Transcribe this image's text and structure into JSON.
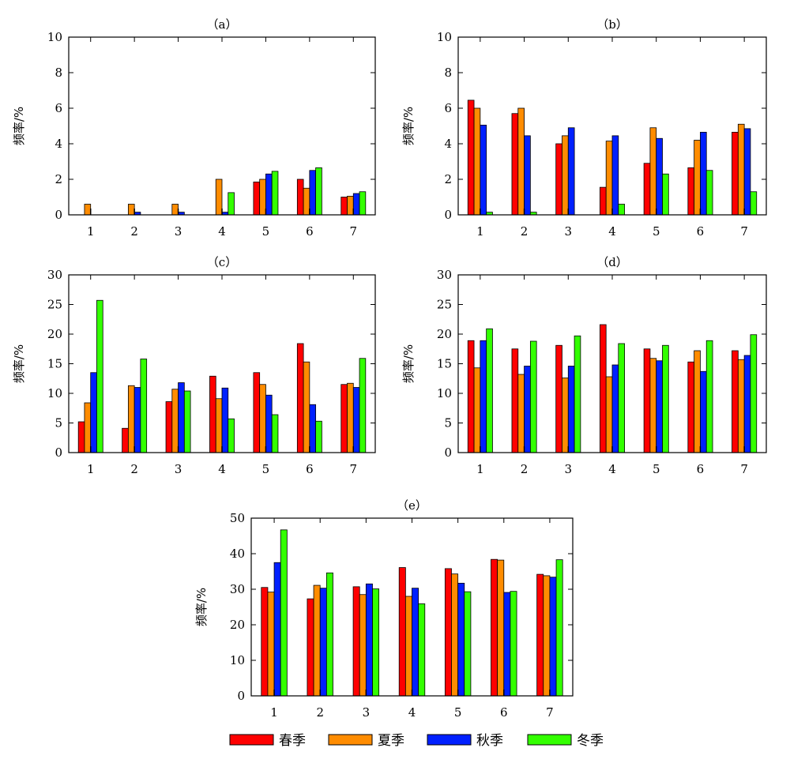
{
  "chart_data": [
    {
      "type": "bar",
      "title": "（a）",
      "ylabel": "频率/%",
      "xlabel": "",
      "categories": [
        "1",
        "2",
        "3",
        "4",
        "5",
        "6",
        "7"
      ],
      "ylim": [
        0,
        10
      ],
      "yticks": [
        0,
        2,
        4,
        6,
        8,
        10
      ],
      "series": [
        {
          "name": "春季",
          "values": [
            0,
            0,
            0,
            0,
            1.85,
            2.0,
            1.0
          ]
        },
        {
          "name": "夏季",
          "values": [
            0.6,
            0.6,
            0.6,
            2.0,
            2.0,
            1.5,
            1.05
          ]
        },
        {
          "name": "秋季",
          "values": [
            0,
            0.15,
            0.15,
            0.15,
            2.3,
            2.5,
            1.2
          ]
        },
        {
          "name": "冬季",
          "values": [
            0,
            0,
            0,
            1.25,
            2.45,
            2.65,
            1.3
          ]
        }
      ]
    },
    {
      "type": "bar",
      "title": "（b）",
      "ylabel": "频率/%",
      "xlabel": "",
      "categories": [
        "1",
        "2",
        "3",
        "4",
        "5",
        "6",
        "7"
      ],
      "ylim": [
        0,
        10
      ],
      "yticks": [
        0,
        2,
        4,
        6,
        8,
        10
      ],
      "series": [
        {
          "name": "春季",
          "values": [
            6.45,
            5.7,
            4.0,
            1.55,
            2.9,
            2.65,
            4.65
          ]
        },
        {
          "name": "夏季",
          "values": [
            6.0,
            6.0,
            4.45,
            4.15,
            4.9,
            4.2,
            5.1
          ]
        },
        {
          "name": "秋季",
          "values": [
            5.05,
            4.45,
            4.9,
            4.45,
            4.3,
            4.65,
            4.85
          ]
        },
        {
          "name": "冬季",
          "values": [
            0.15,
            0.15,
            0,
            0.6,
            2.3,
            2.5,
            1.3
          ]
        }
      ]
    },
    {
      "type": "bar",
      "title": "（c）",
      "ylabel": "频率/%",
      "xlabel": "",
      "categories": [
        "1",
        "2",
        "3",
        "4",
        "5",
        "6",
        "7"
      ],
      "ylim": [
        0,
        30
      ],
      "yticks": [
        0,
        5,
        10,
        15,
        20,
        25,
        30
      ],
      "series": [
        {
          "name": "春季",
          "values": [
            5.2,
            4.1,
            8.6,
            12.9,
            13.5,
            18.4,
            11.5
          ]
        },
        {
          "name": "夏季",
          "values": [
            8.4,
            11.3,
            10.7,
            9.1,
            11.5,
            15.3,
            11.7
          ]
        },
        {
          "name": "秋季",
          "values": [
            13.5,
            11.0,
            11.8,
            10.9,
            9.7,
            8.1,
            11.0
          ]
        },
        {
          "name": "冬季",
          "values": [
            25.7,
            15.8,
            10.4,
            5.7,
            6.4,
            5.3,
            15.9
          ]
        }
      ]
    },
    {
      "type": "bar",
      "title": "（d）",
      "ylabel": "频率/%",
      "xlabel": "",
      "categories": [
        "1",
        "2",
        "3",
        "4",
        "5",
        "6",
        "7"
      ],
      "ylim": [
        0,
        30
      ],
      "yticks": [
        0,
        5,
        10,
        15,
        20,
        25,
        30
      ],
      "series": [
        {
          "name": "春季",
          "values": [
            18.9,
            17.5,
            18.1,
            21.6,
            17.5,
            15.3,
            17.2
          ]
        },
        {
          "name": "夏季",
          "values": [
            14.3,
            13.2,
            12.6,
            12.8,
            15.9,
            17.2,
            15.7
          ]
        },
        {
          "name": "秋季",
          "values": [
            18.9,
            14.6,
            14.6,
            14.8,
            15.5,
            13.7,
            16.4
          ]
        },
        {
          "name": "冬季",
          "values": [
            20.9,
            18.8,
            19.7,
            18.4,
            18.1,
            18.9,
            19.9
          ]
        }
      ]
    },
    {
      "type": "bar",
      "title": "（e）",
      "ylabel": "频率/%",
      "xlabel": "",
      "categories": [
        "1",
        "2",
        "3",
        "4",
        "5",
        "6",
        "7"
      ],
      "ylim": [
        0,
        50
      ],
      "yticks": [
        0,
        10,
        20,
        30,
        40,
        50
      ],
      "series": [
        {
          "name": "春季",
          "values": [
            30.5,
            27.3,
            30.7,
            36.1,
            35.8,
            38.4,
            34.2
          ]
        },
        {
          "name": "夏季",
          "values": [
            29.2,
            31.1,
            28.5,
            28.0,
            34.3,
            38.2,
            33.8
          ]
        },
        {
          "name": "秋季",
          "values": [
            37.5,
            30.3,
            31.5,
            30.3,
            31.7,
            29.1,
            33.4
          ]
        },
        {
          "name": "冬季",
          "values": [
            46.7,
            34.6,
            30.1,
            25.9,
            29.3,
            29.4,
            38.3
          ]
        }
      ]
    }
  ],
  "legend": {
    "placement": "bottom-center",
    "items": [
      {
        "label": "春季",
        "color": "#ff0000"
      },
      {
        "label": "夏季",
        "color": "#ff8c00"
      },
      {
        "label": "秋季",
        "color": "#0020ff"
      },
      {
        "label": "冬季",
        "color": "#33ff00"
      }
    ]
  },
  "series_colors": [
    "#ff0000",
    "#ff8c00",
    "#0020ff",
    "#33ff00"
  ]
}
